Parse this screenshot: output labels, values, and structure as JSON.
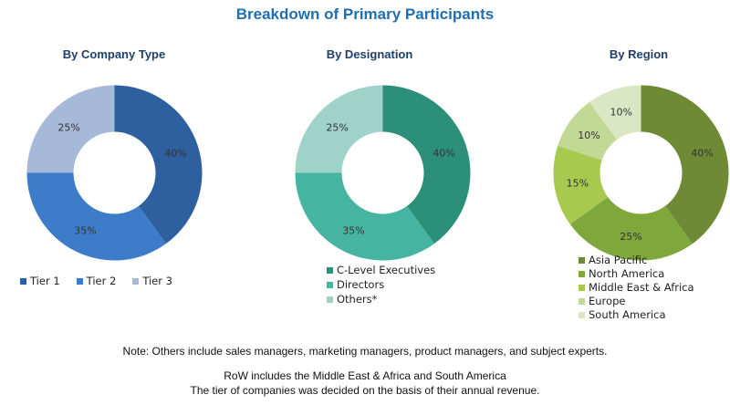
{
  "title": "Breakdown of Primary Participants",
  "chart_data": [
    {
      "type": "pie",
      "title": "By Company Type",
      "categories": [
        "Tier 1",
        "Tier 2",
        "Tier 3"
      ],
      "values": [
        40,
        35,
        25
      ],
      "value_labels": [
        "40%",
        "35%",
        "25%"
      ],
      "colors": [
        "#2e5f9e",
        "#3d7cc9",
        "#a6b9d9"
      ],
      "legend_position": "bottom"
    },
    {
      "type": "pie",
      "title": "By Designation",
      "categories": [
        "C-Level Executives",
        "Directors",
        "Others*"
      ],
      "values": [
        40,
        35,
        25
      ],
      "value_labels": [
        "40%",
        "35%",
        "25%"
      ],
      "colors": [
        "#2b8f7a",
        "#45b5a1",
        "#9fd2c8"
      ],
      "legend_position": "bottom"
    },
    {
      "type": "pie",
      "title": "By Region",
      "categories": [
        "Asia Pacific",
        "North America",
        "Middle East & Africa",
        "Europe",
        "South America"
      ],
      "values": [
        40,
        25,
        15,
        10,
        10
      ],
      "value_labels": [
        "40%",
        "25%",
        "15%",
        "10%",
        "10%"
      ],
      "colors": [
        "#6e8a35",
        "#7fa83c",
        "#a6c94e",
        "#c2d895",
        "#dbe7c4"
      ],
      "legend_position": "bottom"
    }
  ],
  "notes": [
    "Note: Others include sales managers, marketing managers, product managers, and subject experts.",
    "RoW includes the Middle East & Africa and South America",
    "The tier of companies was decided on the basis of their annual revenue."
  ]
}
